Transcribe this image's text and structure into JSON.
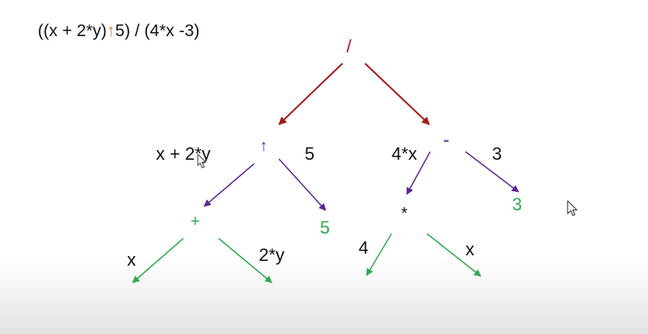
{
  "expression": {
    "before_operator": "((x + 2*y)",
    "operator": "↑",
    "after_operator": "5) / (4*x -3)"
  },
  "nodes": {
    "root_divide": "/",
    "power": "↑",
    "minus": "-",
    "plus": "+",
    "five_leaf": "5",
    "multiply": "*",
    "three_leaf": "3",
    "x_leaf_left": "x",
    "two_y_leaf": "2*y",
    "four_leaf": "4",
    "x_leaf_right": "x"
  },
  "subexpressions": {
    "left_of_power": "x + 2*y",
    "right_of_power": "5",
    "left_of_minus": "4*x",
    "right_of_minus": "3"
  },
  "colors": {
    "dark_red": "#a3191b",
    "purple": "#5b2496",
    "green": "#31a94f",
    "orange": "#c77a24",
    "black": "#111111",
    "gray": "#777777"
  },
  "icons": {
    "cursor_arrow": "cursor-arrow-icon",
    "cursor_hand": "cursor-hand-icon"
  }
}
